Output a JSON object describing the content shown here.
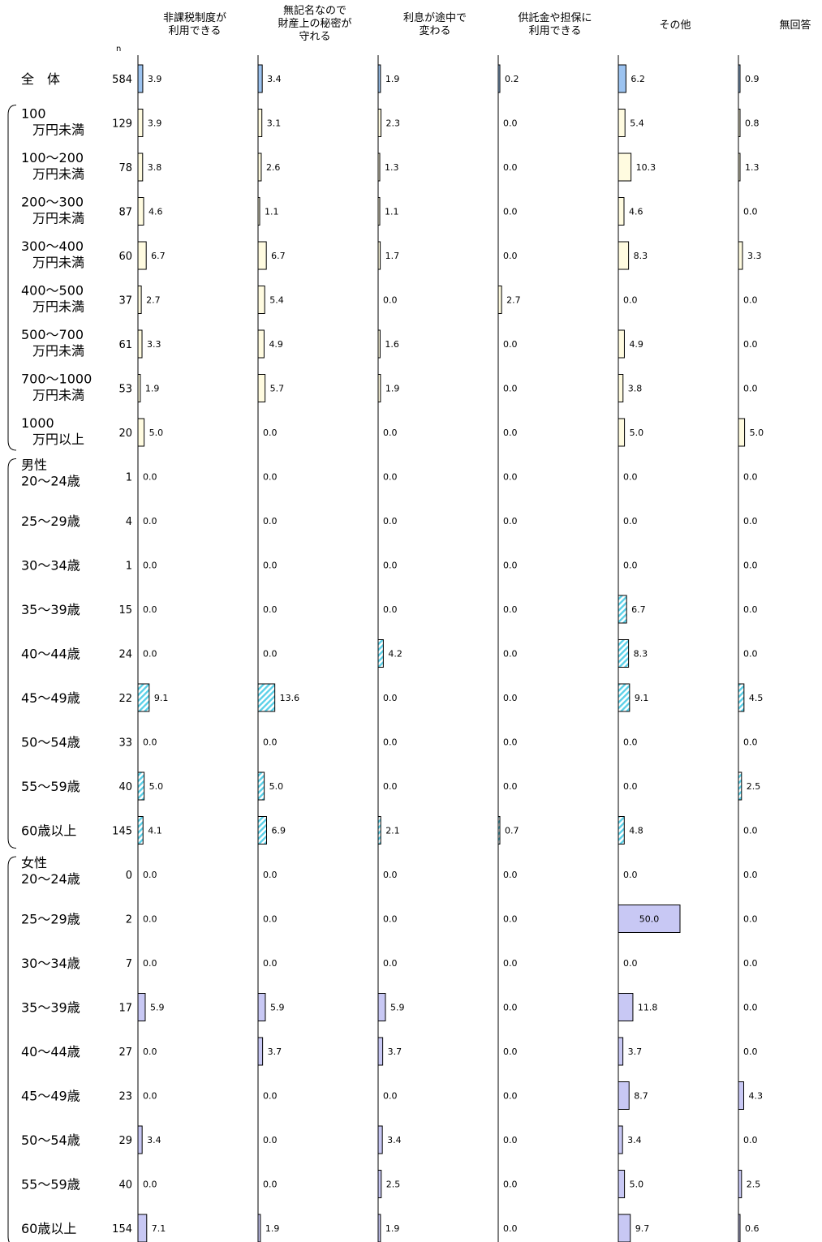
{
  "n_label": "n",
  "columns": [
    "非課税制度が\n利用できる",
    "無記名なので\n財産上の秘密が\n守れる",
    "利息が途中で\n変わる",
    "供託金や担保に\n利用できる",
    "その他",
    "無回答"
  ],
  "colors": {
    "overall": "#9cc3f0",
    "income": "#fffbe0",
    "male_hatch": "#5ad0e8",
    "female": "#c8c8f4"
  },
  "chart_data": {
    "type": "bar",
    "groups": [
      {
        "name": "",
        "rows": [
          {
            "label": "全　体",
            "n": 584,
            "values": [
              3.9,
              3.4,
              1.9,
              0.2,
              6.2,
              0.9
            ]
          }
        ]
      },
      {
        "name": "",
        "rows": [
          {
            "label": "100\n万円未満",
            "n": 129,
            "values": [
              3.9,
              3.1,
              2.3,
              0.0,
              5.4,
              0.8
            ]
          },
          {
            "label": "100～200\n万円未満",
            "n": 78,
            "values": [
              3.8,
              2.6,
              1.3,
              0.0,
              10.3,
              1.3
            ]
          },
          {
            "label": "200～300\n万円未満",
            "n": 87,
            "values": [
              4.6,
              1.1,
              1.1,
              0.0,
              4.6,
              0.0
            ]
          },
          {
            "label": "300～400\n万円未満",
            "n": 60,
            "values": [
              6.7,
              6.7,
              1.7,
              0.0,
              8.3,
              3.3
            ]
          },
          {
            "label": "400～500\n万円未満",
            "n": 37,
            "values": [
              2.7,
              5.4,
              0.0,
              2.7,
              0.0,
              0.0
            ]
          },
          {
            "label": "500～700\n万円未満",
            "n": 61,
            "values": [
              3.3,
              4.9,
              1.6,
              0.0,
              4.9,
              0.0
            ]
          },
          {
            "label": "700～1000\n万円未満",
            "n": 53,
            "values": [
              1.9,
              5.7,
              1.9,
              0.0,
              3.8,
              0.0
            ]
          },
          {
            "label": "1000\n万円以上",
            "n": 20,
            "values": [
              5.0,
              0.0,
              0.0,
              0.0,
              5.0,
              5.0
            ]
          }
        ]
      },
      {
        "name": "男性",
        "rows": [
          {
            "label": "20～24歳",
            "n": 1,
            "values": [
              0.0,
              0.0,
              0.0,
              0.0,
              0.0,
              0.0
            ]
          },
          {
            "label": "25～29歳",
            "n": 4,
            "values": [
              0.0,
              0.0,
              0.0,
              0.0,
              0.0,
              0.0
            ]
          },
          {
            "label": "30～34歳",
            "n": 1,
            "values": [
              0.0,
              0.0,
              0.0,
              0.0,
              0.0,
              0.0
            ]
          },
          {
            "label": "35～39歳",
            "n": 15,
            "values": [
              0.0,
              0.0,
              0.0,
              0.0,
              6.7,
              0.0
            ]
          },
          {
            "label": "40～44歳",
            "n": 24,
            "values": [
              0.0,
              0.0,
              4.2,
              0.0,
              8.3,
              0.0
            ]
          },
          {
            "label": "45～49歳",
            "n": 22,
            "values": [
              9.1,
              13.6,
              0.0,
              0.0,
              9.1,
              4.5
            ]
          },
          {
            "label": "50～54歳",
            "n": 33,
            "values": [
              0.0,
              0.0,
              0.0,
              0.0,
              0.0,
              0.0
            ]
          },
          {
            "label": "55～59歳",
            "n": 40,
            "values": [
              5.0,
              5.0,
              0.0,
              0.0,
              0.0,
              2.5
            ]
          },
          {
            "label": "60歳以上",
            "n": 145,
            "values": [
              4.1,
              6.9,
              2.1,
              0.7,
              4.8,
              0.0
            ]
          }
        ]
      },
      {
        "name": "女性",
        "rows": [
          {
            "label": "20～24歳",
            "n": 0,
            "values": [
              0.0,
              0.0,
              0.0,
              0.0,
              0.0,
              0.0
            ]
          },
          {
            "label": "25～29歳",
            "n": 2,
            "values": [
              0.0,
              0.0,
              0.0,
              0.0,
              50.0,
              0.0
            ]
          },
          {
            "label": "30～34歳",
            "n": 7,
            "values": [
              0.0,
              0.0,
              0.0,
              0.0,
              0.0,
              0.0
            ]
          },
          {
            "label": "35～39歳",
            "n": 17,
            "values": [
              5.9,
              5.9,
              5.9,
              0.0,
              11.8,
              0.0
            ]
          },
          {
            "label": "40～44歳",
            "n": 27,
            "values": [
              0.0,
              3.7,
              3.7,
              0.0,
              3.7,
              0.0
            ]
          },
          {
            "label": "45～49歳",
            "n": 23,
            "values": [
              0.0,
              0.0,
              0.0,
              0.0,
              8.7,
              4.3
            ]
          },
          {
            "label": "50～54歳",
            "n": 29,
            "values": [
              3.4,
              0.0,
              3.4,
              0.0,
              3.4,
              0.0
            ]
          },
          {
            "label": "55～59歳",
            "n": 40,
            "values": [
              0.0,
              0.0,
              2.5,
              0.0,
              5.0,
              2.5
            ]
          },
          {
            "label": "60歳以上",
            "n": 154,
            "values": [
              7.1,
              1.9,
              1.9,
              0.0,
              9.7,
              0.6
            ]
          }
        ]
      }
    ]
  }
}
